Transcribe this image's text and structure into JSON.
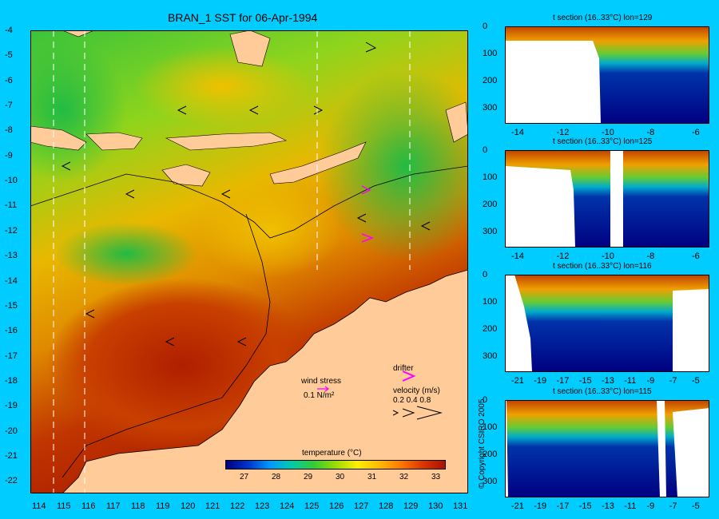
{
  "title": "BRAN_1 SST for 06-Apr-1994",
  "map": {
    "lat_ticks": [
      "-4",
      "-5",
      "-6",
      "-7",
      "-8",
      "-9",
      "-10",
      "-11",
      "-12",
      "-13",
      "-14",
      "-15",
      "-16",
      "-17",
      "-18",
      "-19",
      "-20",
      "-21",
      "-22"
    ],
    "lon_ticks": [
      "114",
      "115",
      "116",
      "117",
      "118",
      "119",
      "120",
      "121",
      "122",
      "123",
      "124",
      "125",
      "126",
      "127",
      "128",
      "129",
      "130",
      "131"
    ],
    "section_lons": [
      114.5,
      115.8,
      125.4,
      129.2
    ],
    "colors": {
      "land": "#ffcc99",
      "sea_warm": "#cc2200",
      "sea_mid": "#e8b000",
      "sea_cool": "#44cc33"
    }
  },
  "legend": {
    "wind_title": "wind stress",
    "wind_scale": "0.1 N/m²",
    "drifter_label": "drifter",
    "velocity_title": "velocity (m/s)",
    "velocity_scale": "0.2 0.4 0.8",
    "colorbar_title": "temperature (°C)",
    "colorbar_ticks": [
      "27",
      "28",
      "29",
      "30",
      "31",
      "32",
      "33"
    ]
  },
  "copyright": "© Copyright CSIRO 2005",
  "sections": [
    {
      "title": "t section (16..33°C) lon=129",
      "x_ticks": [
        "-14",
        "-12",
        "-10",
        "-8",
        "-6"
      ],
      "y_ticks": [
        "0",
        "100",
        "200",
        "300"
      ]
    },
    {
      "title": "t section (16..33°C) lon=125",
      "x_ticks": [
        "-14",
        "-12",
        "-10",
        "-8",
        "-6"
      ],
      "y_ticks": [
        "0",
        "100",
        "200",
        "300"
      ]
    },
    {
      "title": "t section (16..33°C) lon=116",
      "x_ticks": [
        "-21",
        "-19",
        "-17",
        "-15",
        "-13",
        "-11",
        "-9",
        "-7",
        "-5"
      ],
      "y_ticks": [
        "0",
        "100",
        "200",
        "300"
      ]
    },
    {
      "title": "t section (16..33°C) lon=115",
      "x_ticks": [
        "-21",
        "-19",
        "-17",
        "-15",
        "-13",
        "-11",
        "-9",
        "-7",
        "-5"
      ],
      "y_ticks": [
        "0",
        "100",
        "200",
        "300"
      ]
    }
  ]
}
